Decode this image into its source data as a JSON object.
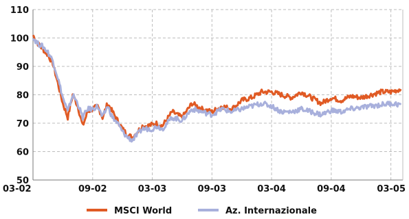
{
  "chart_data": {
    "type": "line",
    "title": "",
    "xlabel": "",
    "ylabel": "",
    "ylim": [
      50,
      110
    ],
    "yticks": [
      50,
      60,
      70,
      80,
      90,
      100,
      110
    ],
    "x_tick_labels": [
      "03-02",
      "09-02",
      "03-03",
      "09-03",
      "03-04",
      "09-04",
      "03-05"
    ],
    "x_tick_months": [
      0,
      6,
      12,
      18,
      24,
      30,
      36
    ],
    "x_range_months": [
      0,
      37.2
    ],
    "grid": true,
    "legend_position": "bottom",
    "series": [
      {
        "name": "MSCI World",
        "color": "#e05a24",
        "x_months": [
          0,
          0.5,
          1,
          1.5,
          2,
          2.5,
          3,
          3.5,
          4,
          4.5,
          5,
          5.5,
          6,
          6.5,
          7,
          7.5,
          8,
          8.5,
          9,
          9.5,
          10,
          10.5,
          11,
          11.5,
          12,
          12.5,
          13,
          14,
          15,
          16,
          17,
          18,
          19,
          20,
          21,
          22,
          23,
          24,
          25,
          26,
          27,
          28,
          29,
          30,
          31,
          32,
          33,
          34,
          35,
          36,
          37
        ],
        "values": [
          101,
          98,
          96,
          94,
          91,
          84,
          77,
          72,
          80,
          76,
          69,
          74,
          75,
          76,
          72,
          77,
          74,
          71,
          68,
          66,
          65,
          67,
          69,
          69,
          69.5,
          70,
          69,
          74,
          72,
          77,
          75,
          74,
          76,
          75,
          78,
          79,
          81,
          81,
          80,
          79,
          81,
          79,
          77,
          79,
          78,
          79.5,
          79,
          80,
          81,
          81,
          82
        ]
      },
      {
        "name": "Az. Internazionale",
        "color": "#a8b0dc",
        "x_months": [
          0,
          0.5,
          1,
          1.5,
          2,
          2.5,
          3,
          3.5,
          4,
          4.5,
          5,
          5.5,
          6,
          6.5,
          7,
          7.5,
          8,
          8.5,
          9,
          9.5,
          10,
          10.5,
          11,
          11.5,
          12,
          12.5,
          13,
          14,
          15,
          16,
          17,
          18,
          19,
          20,
          21,
          22,
          23,
          24,
          25,
          26,
          27,
          28,
          29,
          30,
          31,
          32,
          33,
          34,
          35,
          36,
          37
        ],
        "values": [
          100,
          98,
          97,
          95,
          92,
          86,
          79,
          74,
          80,
          77,
          72,
          75,
          75,
          76,
          72,
          76,
          72,
          70,
          67,
          65,
          64,
          66,
          68,
          68,
          68,
          69,
          68,
          72,
          71,
          75,
          74,
          73,
          75,
          74,
          75,
          76,
          77,
          76,
          74,
          74,
          75,
          74,
          73,
          74.5,
          74,
          75,
          75.5,
          76,
          76.5,
          77,
          76.5
        ]
      }
    ]
  }
}
